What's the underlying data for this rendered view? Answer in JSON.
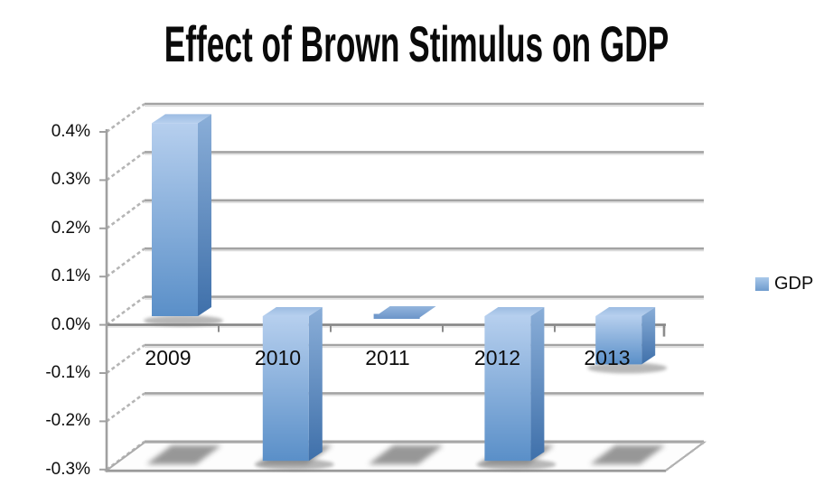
{
  "title": "Effect of Brown Stimulus on GDP",
  "legend": {
    "label": "GDP"
  },
  "y_axis_tick_labels": [
    "0.4%",
    "0.3%",
    "0.2%",
    "0.1%",
    "0.0%",
    "-0.1%",
    "-0.2%",
    "-0.3%"
  ],
  "chart_data": {
    "type": "bar",
    "projection": "3d",
    "title": "Effect of Brown Stimulus on GDP",
    "categories": [
      "2009",
      "2010",
      "2011",
      "2012",
      "2013"
    ],
    "series": [
      {
        "name": "GDP",
        "values": [
          0.4,
          -0.3,
          0.0,
          -0.3,
          -0.1
        ]
      }
    ],
    "values_unit": "percent",
    "ylim": [
      -0.3,
      0.4
    ],
    "ytick_step": 0.1,
    "ytick_labels": [
      "0.4%",
      "0.3%",
      "0.2%",
      "0.1%",
      "0.0%",
      "-0.1%",
      "-0.2%",
      "-0.3%"
    ],
    "xlabel": "",
    "ylabel": "",
    "grid": true,
    "legend_position": "right"
  },
  "colors": {
    "background": "#ffffff",
    "text": "#0d0d0d",
    "bar_front_top": "#b6cfee",
    "bar_front_bottom": "#5a8fc8",
    "bar_side_top": "#8aaed8",
    "bar_side_bottom": "#3f70aa",
    "bar_top_back": "#9cbce2",
    "bar_top_front": "#b7d0ee",
    "tile_top": "#93b5dd",
    "tile_bottom": "#7098cb",
    "gridline": "#a3a3a3",
    "gridline_echo": "#dcdcdc",
    "zero_axis": "#858585",
    "axis": "#a0a0a0",
    "depth_dash": "#b5b5b5",
    "floor_fill": "#fdfdfd",
    "floor_edge": "#ababab",
    "shadow": "#7e7e7e"
  }
}
